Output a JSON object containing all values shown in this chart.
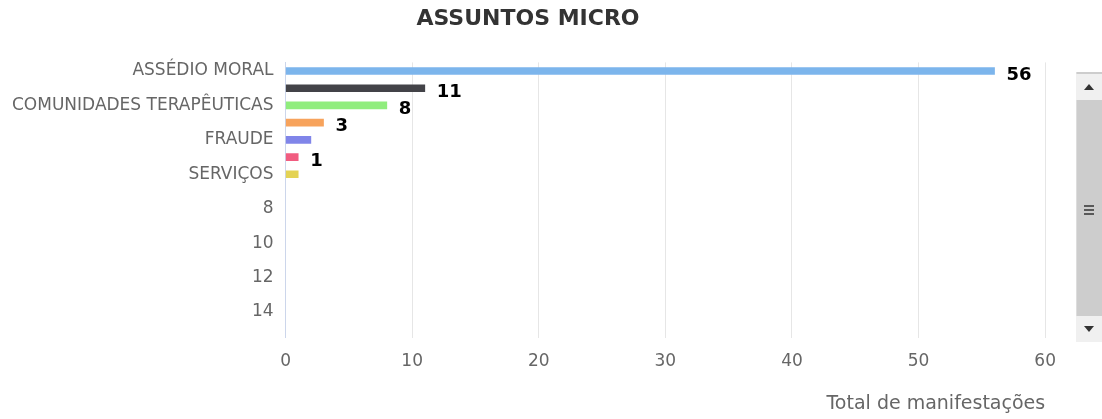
{
  "chart_data": {
    "type": "bar",
    "orientation": "horizontal",
    "title": "ASSUNTOS MICRO",
    "xlabel": "Total de manifestações",
    "categories": [
      "ASSÉDIO MORAL",
      null,
      "COMUNIDADES TERAPÊUTICAS",
      null,
      "FRAUDE",
      null,
      "SERVIÇOS",
      null,
      "8",
      null,
      "10",
      null,
      "12",
      null,
      "14",
      null
    ],
    "values": [
      56,
      11,
      8,
      3,
      2,
      1,
      1,
      null,
      null,
      null,
      null,
      null,
      null,
      null,
      null,
      null
    ],
    "colors": [
      "#7cb5ec",
      "#434348",
      "#90ed7d",
      "#f7a35c",
      "#8085e9",
      "#f15c80",
      "#e4d354",
      "#2b908f",
      "#f45b5b",
      "#91e8e1",
      "#7cb5ec",
      "#434348",
      "#90ed7d",
      "#f7a35c",
      "#8085e9",
      "#f15c80"
    ],
    "value_labels": [
      "56",
      "11",
      "8",
      "3",
      null,
      "1",
      null,
      null,
      null,
      null,
      null,
      null,
      null,
      null,
      null,
      null
    ],
    "xlim": [
      0,
      60
    ],
    "xticks": [
      0,
      10,
      20,
      30,
      40,
      50,
      60
    ],
    "grid": "x",
    "legend": false
  }
}
